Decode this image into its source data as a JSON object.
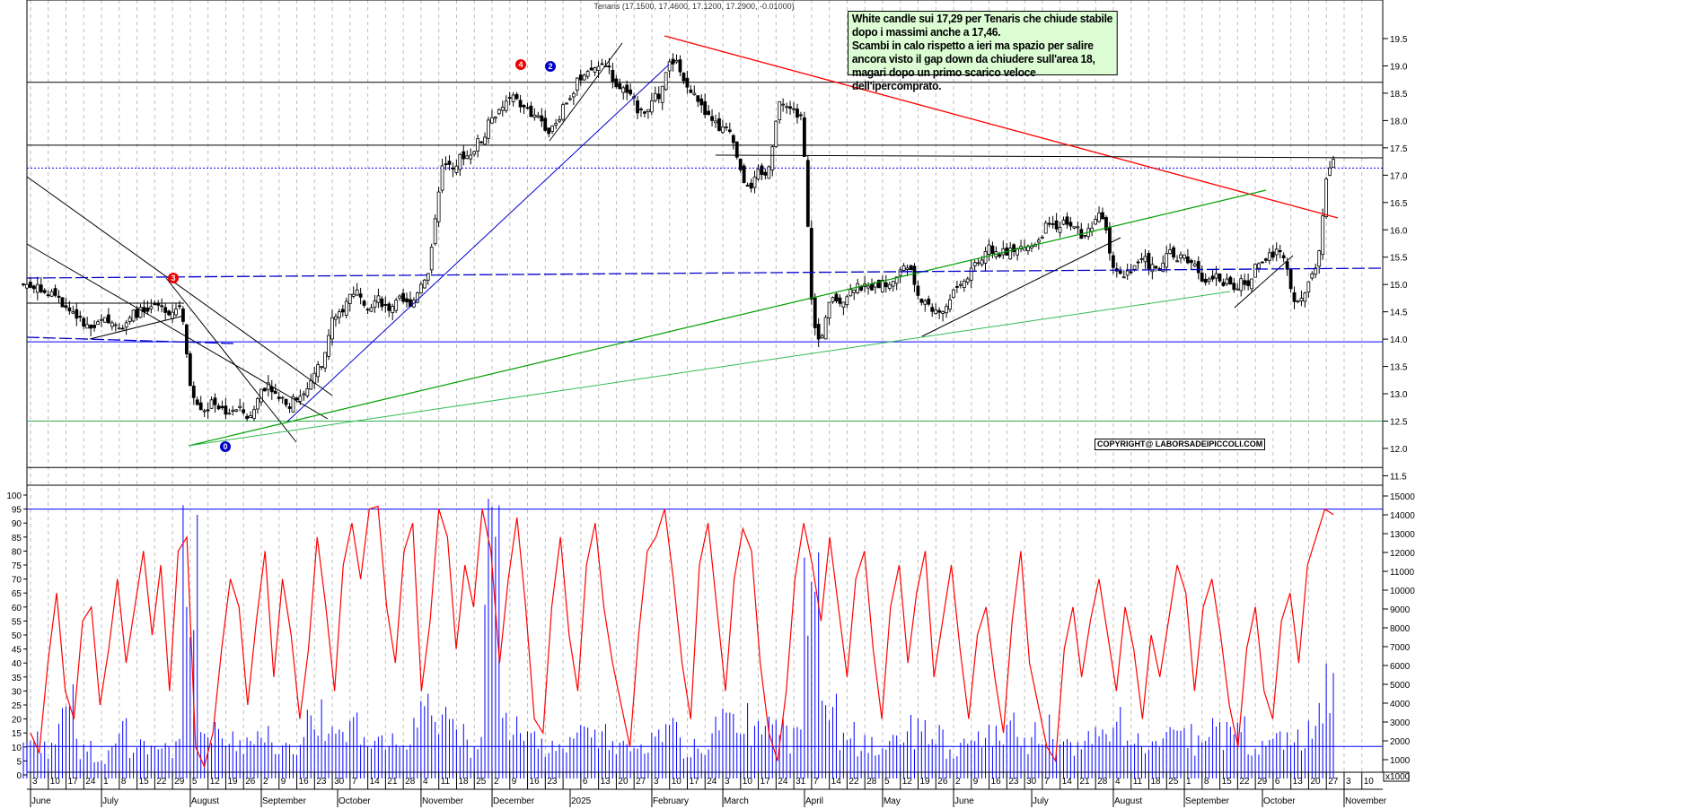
{
  "chart_data": {
    "type": "candlestick",
    "title": "Tenaris (17.1500, 17.4600, 17.1200, 17.2900, -0.01000)",
    "price_axis": {
      "ylim": [
        11.5,
        19.5
      ],
      "ticks": [
        "19.5",
        "19.0",
        "18.5",
        "18.0",
        "17.5",
        "17.0",
        "16.5",
        "16.0",
        "15.5",
        "15.0",
        "14.5",
        "14.0",
        "13.5",
        "13.0",
        "12.5",
        "12.0",
        "11.5"
      ]
    },
    "oscillator_axis": {
      "ylim": [
        0,
        100
      ],
      "ticks": [
        "100",
        "95",
        "90",
        "85",
        "80",
        "75",
        "70",
        "65",
        "60",
        "55",
        "50",
        "45",
        "40",
        "35",
        "30",
        "25",
        "20",
        "15",
        "10",
        "5",
        "0"
      ]
    },
    "volume_axis": {
      "unit_label": "x1000",
      "ticks": [
        "15000",
        "14000",
        "13000",
        "12000",
        "11000",
        "10000",
        "9000",
        "8000",
        "7000",
        "6000",
        "5000",
        "4000",
        "3000",
        "2000",
        "1000"
      ]
    },
    "week_labels": [
      "3",
      "10",
      "17",
      "24",
      "1",
      "8",
      "15",
      "22",
      "29",
      "5",
      "12",
      "19",
      "26",
      "2",
      "9",
      "16",
      "23",
      "30",
      "7",
      "14",
      "21",
      "28",
      "4",
      "11",
      "18",
      "25",
      "2",
      "9",
      "16",
      "23",
      "",
      "6",
      "13",
      "20",
      "27",
      "3",
      "10",
      "17",
      "24",
      "3",
      "10",
      "17",
      "24",
      "31",
      "7",
      "14",
      "22",
      "28",
      "5",
      "12",
      "19",
      "26",
      "2",
      "9",
      "16",
      "23",
      "30",
      "7",
      "14",
      "21",
      "28",
      "4",
      "11",
      "18",
      "25",
      "1",
      "8",
      "15",
      "22",
      "29",
      "6",
      "13",
      "20",
      "27",
      "3",
      "10"
    ],
    "months": [
      {
        "label": "June",
        "week": 0
      },
      {
        "label": "July",
        "week": 4
      },
      {
        "label": "August",
        "week": 9
      },
      {
        "label": "September",
        "week": 13
      },
      {
        "label": "October",
        "week": 17.3
      },
      {
        "label": "November",
        "week": 22
      },
      {
        "label": "December",
        "week": 26
      },
      {
        "label": "2025",
        "week": 30.4
      },
      {
        "label": "February",
        "week": 35
      },
      {
        "label": "March",
        "week": 39
      },
      {
        "label": "April",
        "week": 43.6
      },
      {
        "label": "May",
        "week": 48
      },
      {
        "label": "June",
        "week": 52
      },
      {
        "label": "July",
        "week": 56.4
      },
      {
        "label": "August",
        "week": 61
      },
      {
        "label": "September",
        "week": 65
      },
      {
        "label": "October",
        "week": 69.4
      },
      {
        "label": "November",
        "week": 74
      }
    ],
    "weekly_close": [
      15.0,
      14.8,
      14.5,
      14.2,
      14.3,
      14.3,
      14.5,
      14.6,
      14.6,
      12.8,
      12.8,
      12.7,
      12.6,
      13.2,
      12.8,
      13.0,
      13.5,
      14.5,
      14.9,
      14.7,
      14.6,
      14.6,
      15.2,
      17.2,
      17.3,
      17.6,
      18.2,
      18.4,
      18.1,
      17.9,
      18.4,
      18.9,
      19.0,
      18.6,
      18.2,
      18.4,
      19.1,
      18.5,
      18.0,
      17.8,
      16.8,
      17.0,
      18.3,
      18.1,
      14.0,
      14.7,
      14.9,
      14.9,
      15.0,
      15.3,
      14.7,
      14.5,
      15.0,
      15.4,
      15.6,
      15.6,
      15.7,
      16.1,
      16.1,
      15.9,
      16.2,
      15.2,
      15.4,
      15.3,
      15.5,
      15.4,
      15.1,
      15.1,
      15.0,
      15.4,
      15.6,
      14.7,
      15.3,
      17.29
    ],
    "oscillator": [
      15,
      8,
      40,
      65,
      30,
      20,
      55,
      60,
      25,
      45,
      70,
      40,
      60,
      80,
      50,
      75,
      30,
      80,
      85,
      10,
      3,
      15,
      45,
      70,
      60,
      25,
      55,
      80,
      35,
      70,
      50,
      20,
      45,
      85,
      60,
      30,
      75,
      90,
      70,
      95,
      96,
      60,
      40,
      80,
      90,
      30,
      55,
      95,
      85,
      45,
      75,
      60,
      95,
      80,
      40,
      70,
      92,
      60,
      20,
      15,
      60,
      85,
      50,
      30,
      75,
      90,
      60,
      40,
      25,
      10,
      50,
      80,
      85,
      95,
      70,
      40,
      20,
      75,
      90,
      60,
      30,
      70,
      88,
      80,
      40,
      15,
      5,
      30,
      70,
      90,
      75,
      55,
      85,
      60,
      35,
      70,
      80,
      45,
      20,
      60,
      75,
      40,
      65,
      80,
      35,
      55,
      75,
      45,
      20,
      50,
      60,
      35,
      15,
      55,
      80,
      40,
      25,
      10,
      5,
      45,
      60,
      35,
      55,
      70,
      50,
      30,
      60,
      45,
      20,
      50,
      35,
      55,
      75,
      65,
      30,
      60,
      70,
      50,
      25,
      10,
      45,
      60,
      30,
      20,
      55,
      65,
      40,
      75,
      85,
      95,
      93
    ],
    "volume_thousands": [
      2.5,
      1.8,
      5.0,
      2.0,
      1.5,
      3.2,
      2.0,
      1.6,
      2.1,
      14.0,
      3.0,
      2.5,
      2.0,
      2.8,
      1.9,
      2.2,
      4.2,
      2.6,
      3.5,
      2.0,
      2.4,
      1.8,
      4.5,
      3.8,
      2.9,
      2.2,
      14.5,
      3.3,
      2.5,
      2.0,
      2.2,
      2.7,
      2.9,
      2.0,
      1.8,
      2.6,
      3.0,
      2.1,
      2.4,
      3.5,
      4.0,
      2.8,
      3.2,
      2.6,
      12.0,
      4.5,
      3.0,
      2.2,
      2.0,
      2.5,
      3.1,
      2.6,
      1.9,
      2.5,
      2.8,
      3.5,
      2.2,
      3.4,
      2.1,
      2.0,
      2.6,
      3.8,
      2.4,
      2.0,
      2.6,
      2.9,
      2.2,
      3.0,
      3.3,
      2.0,
      2.5,
      2.6,
      2.8,
      5.6
    ],
    "levels": {
      "resistance_upper": 18.7,
      "resistance": 17.55,
      "dotted_blue": 17.13,
      "blue": 13.95,
      "green": 12.5,
      "black_low": 11.65,
      "osc_upper": 95,
      "vol_avg": 1700
    },
    "colors": {
      "candles": "#000000",
      "oscillator": "#ff0000",
      "volume": "#0000ff",
      "grid": "#bdbdbd",
      "trend_red": "#ff0000",
      "trend_blue": "#0000cc",
      "trend_green": "#00aa00"
    }
  },
  "annotation": {
    "lines": [
      "White candle sui 17,29 per Tenaris che chiude stabile",
      "dopo i massimi anche a 17,46.",
      "Scambi in calo rispetto a ieri ma spazio per salire",
      "ancora visto il gap down da chiudere sull'area 18,",
      "magari dopo un primo scarico veloce dell'ipercomprato."
    ]
  },
  "copyright": "COPYRIGHT@ LABORSADEIPICCOLI.COM",
  "markers": [
    "4",
    "2",
    "3",
    "0"
  ]
}
